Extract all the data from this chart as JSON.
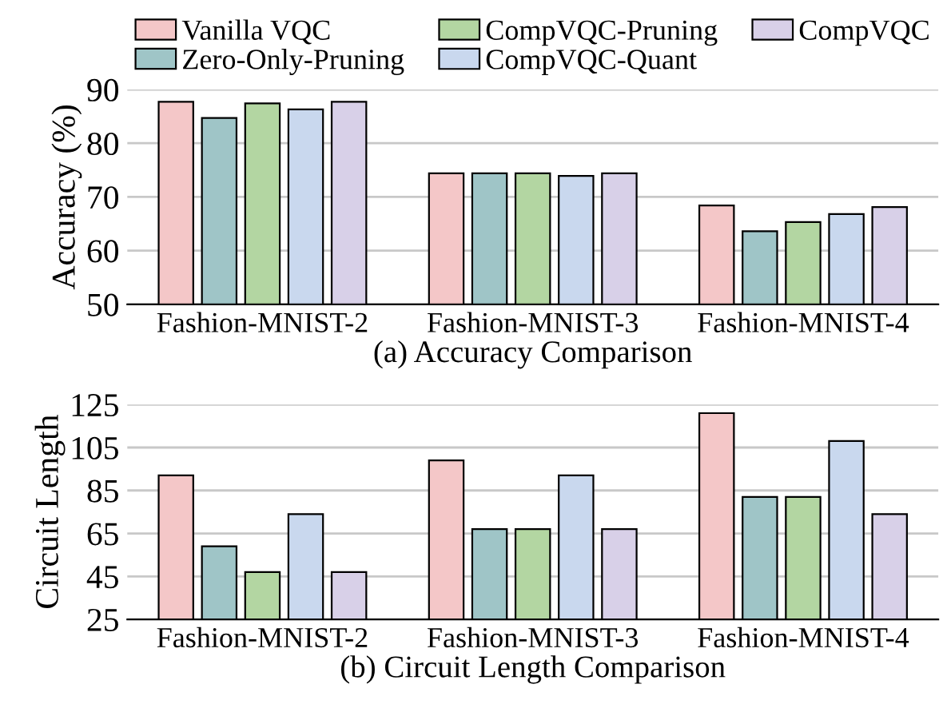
{
  "chart_data": [
    {
      "type": "bar",
      "xlabel": "(a) Accuracy Comparison",
      "ylabel": "Accuracy (%)",
      "categories": [
        "Fashion-MNIST-2",
        "Fashion-MNIST-3",
        "Fashion-MNIST-4"
      ],
      "ylim": [
        50,
        90
      ],
      "yticks": [
        50,
        60,
        70,
        80,
        90
      ],
      "grid": "y",
      "legend": "top",
      "series": [
        {
          "name": "Vanilla VQC",
          "color": "#f4c7c8",
          "values": [
            87.7,
            74.4,
            68.4
          ]
        },
        {
          "name": "Zero-Only-Pruning",
          "color": "#9fc5c7",
          "values": [
            84.7,
            74.4,
            63.6
          ]
        },
        {
          "name": "CompVQC-Pruning",
          "color": "#b3d6a2",
          "values": [
            87.4,
            74.4,
            65.3
          ]
        },
        {
          "name": "CompVQC-Quant",
          "color": "#c9d8ee",
          "values": [
            86.3,
            73.9,
            66.8
          ]
        },
        {
          "name": "CompVQC",
          "color": "#d8d0e8",
          "values": [
            87.7,
            74.4,
            68.1
          ]
        }
      ]
    },
    {
      "type": "bar",
      "xlabel": "(b) Circuit Length Comparison",
      "ylabel": "Circuit Length",
      "categories": [
        "Fashion-MNIST-2",
        "Fashion-MNIST-3",
        "Fashion-MNIST-4"
      ],
      "ylim": [
        25,
        125
      ],
      "yticks": [
        25,
        45,
        65,
        85,
        105,
        125
      ],
      "grid": "y",
      "series": [
        {
          "color": "#f4c7c8",
          "values": [
            92,
            99,
            121
          ]
        },
        {
          "color": "#9fc5c7",
          "values": [
            59,
            67,
            82
          ]
        },
        {
          "color": "#b3d6a2",
          "values": [
            47,
            67,
            82
          ]
        },
        {
          "color": "#c9d8ee",
          "values": [
            74,
            92,
            108
          ]
        },
        {
          "color": "#d8d0e8",
          "values": [
            47,
            67,
            74
          ]
        }
      ]
    }
  ]
}
